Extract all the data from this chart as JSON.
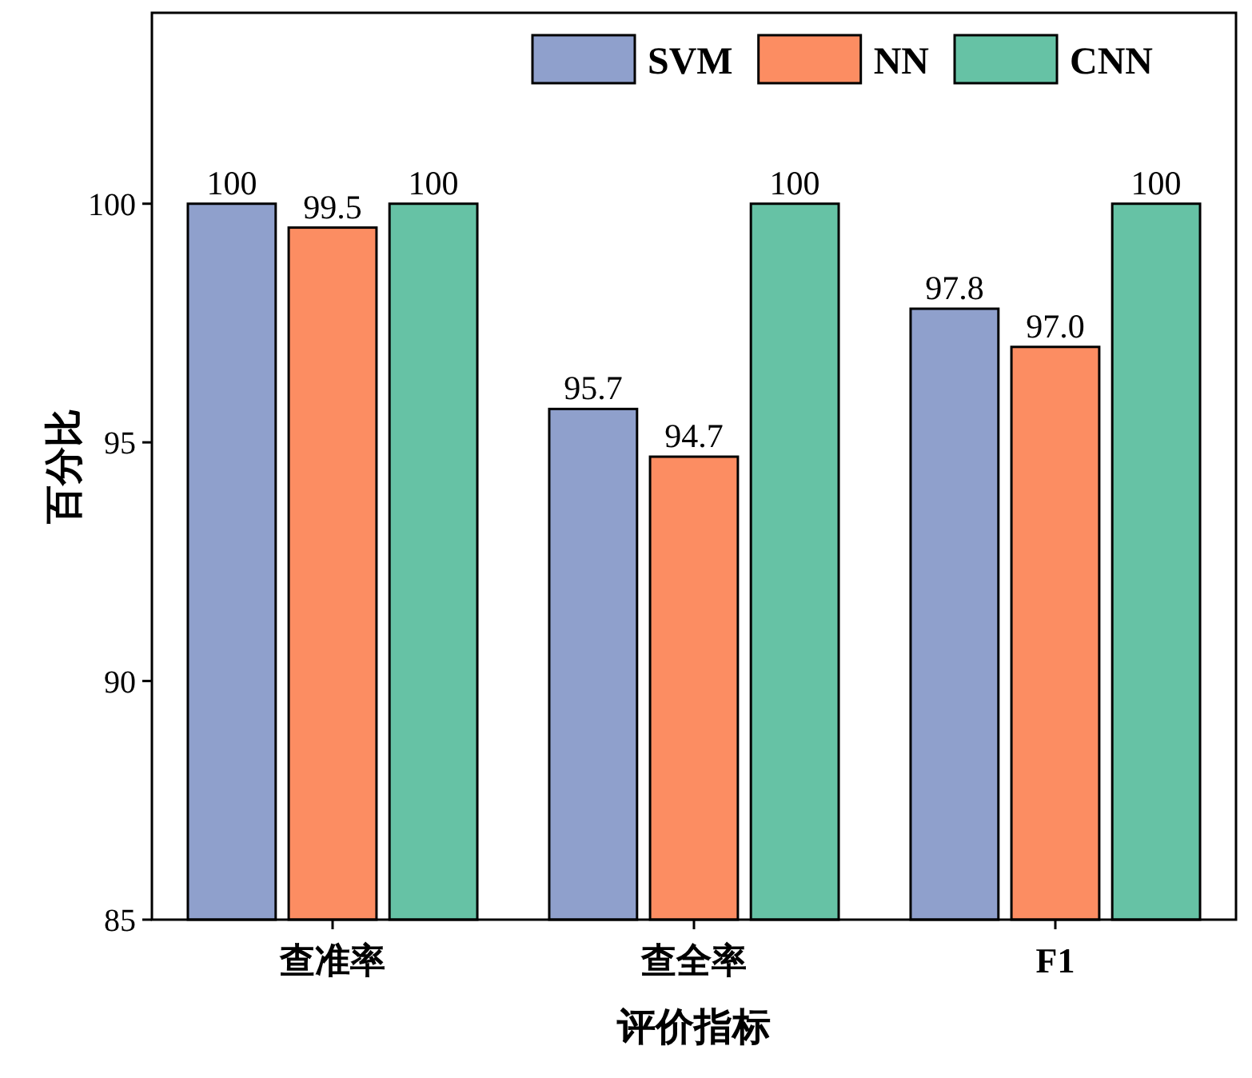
{
  "chart_data": {
    "type": "bar",
    "xlabel": "评价指标",
    "ylabel": "百分比",
    "categories": [
      "查准率",
      "查全率",
      "F1"
    ],
    "series": [
      {
        "name": "SVM",
        "color": "#8fa0cc",
        "values": [
          100,
          95.7,
          97.8
        ],
        "value_labels": [
          "100",
          "95.7",
          "97.8"
        ]
      },
      {
        "name": "NN",
        "color": "#fc8d62",
        "values": [
          99.5,
          94.7,
          97.0
        ],
        "value_labels": [
          "99.5",
          "94.7",
          "97.0"
        ]
      },
      {
        "name": "CNN",
        "color": "#66c2a5",
        "values": [
          100,
          100,
          100
        ],
        "value_labels": [
          "100",
          "100",
          "100"
        ]
      }
    ],
    "ylim": [
      85,
      104
    ],
    "yticks": [
      85,
      90,
      95,
      100
    ],
    "grid": false,
    "legend": "top right"
  }
}
